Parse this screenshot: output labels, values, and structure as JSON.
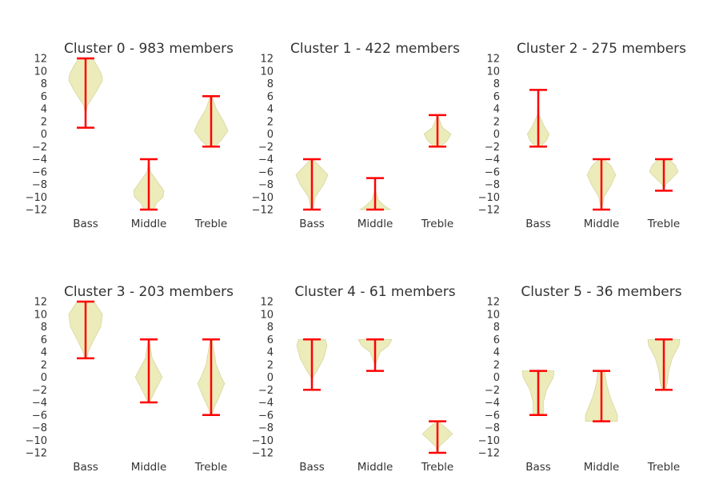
{
  "chart_data": {
    "type": "violin",
    "yticks": [
      12,
      10,
      8,
      6,
      4,
      2,
      0,
      -2,
      -4,
      -6,
      -8,
      -10,
      -12
    ],
    "ylim": [
      -12,
      12
    ],
    "categories": [
      "Bass",
      "Middle",
      "Treble"
    ],
    "colors": {
      "body": "#ebebb7",
      "edge": "#d4d49a",
      "whisker": "#ff0000",
      "text": "#333333"
    },
    "panels": [
      {
        "title": "Cluster 0 - 983 members",
        "violins": [
          {
            "min": 1,
            "max": 12,
            "density": [
              [
                12,
                0.4
              ],
              [
                11,
                0.65
              ],
              [
                9.5,
                0.95
              ],
              [
                8.5,
                1
              ],
              [
                7,
                0.7
              ],
              [
                5.5,
                0.35
              ],
              [
                4.5,
                0.1
              ],
              [
                3,
                0.02
              ],
              [
                1,
                0
              ]
            ]
          },
          {
            "min": -12,
            "max": -4,
            "density": [
              [
                -4,
                0
              ],
              [
                -6,
                0.1
              ],
              [
                -7.5,
                0.5
              ],
              [
                -9,
                0.9
              ],
              [
                -10,
                0.85
              ],
              [
                -11,
                0.45
              ],
              [
                -12,
                0.3
              ]
            ]
          },
          {
            "min": -2,
            "max": 6,
            "density": [
              [
                6,
                0.05
              ],
              [
                4,
                0.3
              ],
              [
                2,
                0.75
              ],
              [
                0.5,
                1
              ],
              [
                -1,
                0.6
              ],
              [
                -2,
                0.2
              ]
            ]
          }
        ]
      },
      {
        "title": "Cluster 1 - 422 members",
        "violins": [
          {
            "min": -12,
            "max": -4,
            "density": [
              [
                -4,
                0.05
              ],
              [
                -5.5,
                0.6
              ],
              [
                -6.5,
                0.95
              ],
              [
                -8,
                0.7
              ],
              [
                -10,
                0.2
              ],
              [
                -12,
                0.05
              ]
            ]
          },
          {
            "min": -12,
            "max": -7,
            "density": [
              [
                -7,
                0
              ],
              [
                -9,
                0.02
              ],
              [
                -10.5,
                0.2
              ],
              [
                -11.5,
                0.6
              ],
              [
                -12,
                0.9
              ]
            ]
          },
          {
            "min": -2,
            "max": 3,
            "density": [
              [
                3,
                0
              ],
              [
                1,
                0.3
              ],
              [
                0,
                0.8
              ],
              [
                -1,
                0.6
              ],
              [
                -2,
                0.2
              ]
            ]
          }
        ]
      },
      {
        "title": "Cluster 2 - 275 members",
        "violins": [
          {
            "min": -2,
            "max": 7,
            "density": [
              [
                7,
                0
              ],
              [
                3,
                0.05
              ],
              [
                1,
                0.4
              ],
              [
                0,
                0.65
              ],
              [
                -1,
                0.5
              ],
              [
                -2,
                0.15
              ]
            ]
          },
          {
            "min": -12,
            "max": -4,
            "density": [
              [
                -4,
                0.1
              ],
              [
                -5,
                0.55
              ],
              [
                -6.5,
                0.85
              ],
              [
                -8,
                0.6
              ],
              [
                -10,
                0.15
              ],
              [
                -12,
                0.02
              ]
            ]
          },
          {
            "min": -9,
            "max": -4,
            "density": [
              [
                -4,
                0.3
              ],
              [
                -5,
                0.7
              ],
              [
                -6,
                0.85
              ],
              [
                -7,
                0.5
              ],
              [
                -8,
                0.1
              ],
              [
                -9,
                0.02
              ]
            ]
          }
        ]
      },
      {
        "title": "Cluster 3 - 203 members",
        "violins": [
          {
            "min": 3,
            "max": 12,
            "density": [
              [
                12,
                0.5
              ],
              [
                10,
                1
              ],
              [
                8,
                0.9
              ],
              [
                6,
                0.5
              ],
              [
                4,
                0.15
              ],
              [
                3,
                0.05
              ]
            ]
          },
          {
            "min": -4,
            "max": 6,
            "density": [
              [
                6,
                0.02
              ],
              [
                3,
                0.2
              ],
              [
                1,
                0.6
              ],
              [
                0,
                0.8
              ],
              [
                -2,
                0.4
              ],
              [
                -4,
                0.05
              ]
            ]
          },
          {
            "min": -6,
            "max": 6,
            "density": [
              [
                6,
                0.05
              ],
              [
                2,
                0.3
              ],
              [
                0,
                0.6
              ],
              [
                -1,
                0.8
              ],
              [
                -3,
                0.5
              ],
              [
                -5,
                0.15
              ],
              [
                -6,
                0.05
              ]
            ]
          }
        ]
      },
      {
        "title": "Cluster 4 - 61 members",
        "violins": [
          {
            "min": -2,
            "max": 6,
            "density": [
              [
                6,
                0.8
              ],
              [
                5,
                0.9
              ],
              [
                3,
                0.7
              ],
              [
                1,
                0.3
              ],
              [
                0,
                0.05
              ],
              [
                -2,
                0
              ]
            ]
          },
          {
            "min": 1,
            "max": 6,
            "density": [
              [
                6,
                1
              ],
              [
                5,
                0.8
              ],
              [
                4,
                0.3
              ],
              [
                2,
                0.02
              ],
              [
                1,
                0
              ]
            ]
          },
          {
            "min": -12,
            "max": -7,
            "density": [
              [
                -7,
                0.05
              ],
              [
                -8,
                0.5
              ],
              [
                -9,
                0.9
              ],
              [
                -10,
                0.5
              ],
              [
                -11,
                0.1
              ],
              [
                -12,
                0.02
              ]
            ]
          }
        ]
      },
      {
        "title": "Cluster 5 - 36 members",
        "violins": [
          {
            "min": -6,
            "max": 1,
            "density": [
              [
                1,
                0.95
              ],
              [
                0,
                0.9
              ],
              [
                -2,
                0.5
              ],
              [
                -4,
                0.3
              ],
              [
                -6,
                0.3
              ]
            ]
          },
          {
            "min": -7,
            "max": 1,
            "density": [
              [
                1,
                0.2
              ],
              [
                -1,
                0.3
              ],
              [
                -3,
                0.5
              ],
              [
                -5,
                0.8
              ],
              [
                -6,
                0.95
              ],
              [
                -7,
                0.95
              ]
            ]
          },
          {
            "min": -2,
            "max": 6,
            "density": [
              [
                6,
                0.95
              ],
              [
                5,
                0.9
              ],
              [
                3,
                0.5
              ],
              [
                1,
                0.3
              ],
              [
                -1,
                0.2
              ],
              [
                -2,
                0.1
              ]
            ]
          }
        ]
      }
    ]
  }
}
